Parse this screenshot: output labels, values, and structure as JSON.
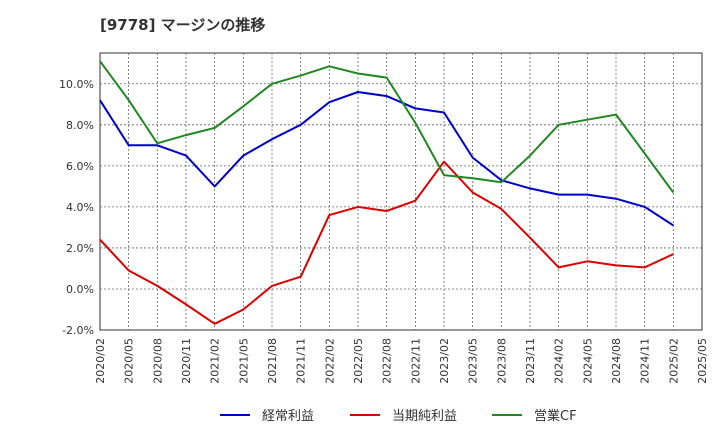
{
  "title": "[9778]  マージンの推移",
  "chart_data": {
    "type": "line",
    "title": "[9778]  マージンの推移",
    "xlabel": "",
    "ylabel": "",
    "categories": [
      "2020/02",
      "2020/05",
      "2020/08",
      "2020/11",
      "2021/02",
      "2021/05",
      "2021/08",
      "2021/11",
      "2022/02",
      "2022/05",
      "2022/08",
      "2022/11",
      "2023/02",
      "2023/05",
      "2023/08",
      "2023/11",
      "2024/02",
      "2024/05",
      "2024/08",
      "2024/11",
      "2025/02",
      "2025/05"
    ],
    "yticks": [
      "-2.0%",
      "0.0%",
      "2.0%",
      "4.0%",
      "6.0%",
      "8.0%",
      "10.0%"
    ],
    "ylim": [
      -2.0,
      11.5
    ],
    "grid": true,
    "legend_position": "bottom",
    "series": [
      {
        "name": "経常利益",
        "color": "#0000cc",
        "values": [
          9.2,
          7.0,
          7.0,
          6.5,
          5.0,
          6.5,
          7.3,
          8.0,
          9.1,
          9.6,
          9.4,
          8.8,
          8.6,
          6.4,
          5.3,
          4.9,
          4.6,
          4.6,
          4.4,
          4.0,
          3.1,
          null
        ]
      },
      {
        "name": "当期純利益",
        "color": "#dd0000",
        "values": [
          2.4,
          0.9,
          0.15,
          -0.75,
          -1.7,
          -1.0,
          0.15,
          0.6,
          3.6,
          4.0,
          3.8,
          4.3,
          6.2,
          4.7,
          3.9,
          2.5,
          1.05,
          1.35,
          1.15,
          1.05,
          1.7,
          null
        ]
      },
      {
        "name": "営業CF",
        "color": "#228822",
        "values": [
          11.1,
          9.2,
          7.1,
          7.5,
          7.85,
          8.9,
          10.0,
          10.4,
          10.85,
          10.5,
          10.3,
          8.1,
          5.55,
          5.4,
          5.2,
          6.5,
          8.0,
          8.25,
          8.5,
          6.6,
          4.7,
          null
        ]
      }
    ]
  }
}
